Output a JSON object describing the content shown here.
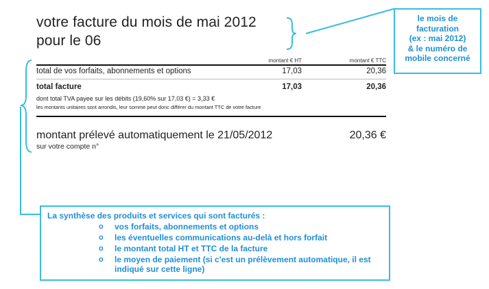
{
  "invoice": {
    "title_line1": "votre facture du mois de mai 2012",
    "title_line2": "pour le 06",
    "col_ht": "montant € HT",
    "col_ttc": "montant € TTC",
    "rows": [
      {
        "label": "total de vos forfaits, abonnements et options",
        "ht": "17,03",
        "ttc": "20,36"
      },
      {
        "label": "total facture",
        "ht": "17,03",
        "ttc": "20,36"
      }
    ],
    "tva_note": "dont total TVA payee sur les débits (19,60% sur 17,03 €) = 3,33 €",
    "rounding_note": "les montants unitaires sont arrondis, leur somme peut donc différer du montant TTC de votre facture",
    "prelevement_label": "montant prélevé automatiquement le 21/05/2012",
    "prelevement_amount": "20,36 €",
    "account_label": "sur votre compte n°"
  },
  "callouts": {
    "top_right_lines": [
      "le mois de",
      "facturation",
      "(ex : mai 2012)",
      "&  le numéro de",
      "mobile concerné"
    ],
    "summary_intro": "La synthèse des produits et services qui sont facturés :",
    "bullet_glyph": "o",
    "summary_items": [
      "vos forfaits, abonnements et options",
      "les éventuelles communications au-delà et hors forfait",
      "le montant total HT et TTC de la facture",
      "le moyen de paiement (si c'est un prélèvement automatique, il est indiqué sur cette ligne)"
    ],
    "accent_color": "#38bde0"
  }
}
